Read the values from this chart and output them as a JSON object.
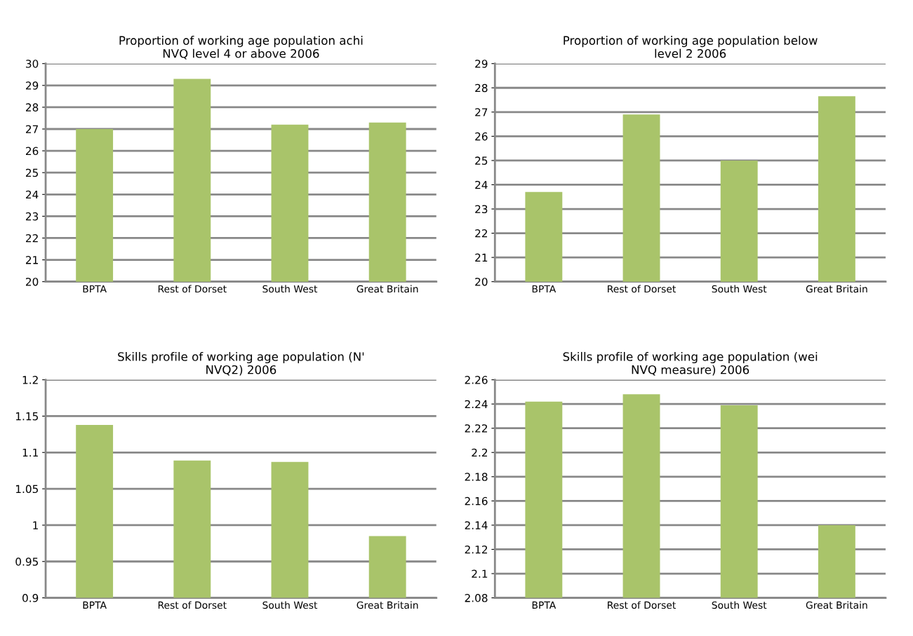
{
  "chart_data": [
    {
      "type": "bar",
      "title": "Proportion of working age population achi\nNVQ level 4 or above 2006",
      "categories": [
        "BPTA",
        "Rest of Dorset",
        "South West",
        "Great Britain"
      ],
      "values": [
        27.0,
        29.3,
        27.2,
        27.3
      ],
      "color": "#a9c46a",
      "ylim": [
        20,
        30
      ],
      "yticks": [
        20,
        21,
        22,
        23,
        24,
        25,
        26,
        27,
        28,
        29,
        30
      ],
      "grid": "y",
      "legend": false
    },
    {
      "type": "bar",
      "title": "Proportion of working age population below\nlevel 2 2006",
      "categories": [
        "BPTA",
        "Rest of Dorset",
        "South West",
        "Great Britain"
      ],
      "values": [
        23.7,
        26.9,
        25.0,
        27.65
      ],
      "color": "#a9c46a",
      "ylim": [
        20,
        29
      ],
      "yticks": [
        20,
        21,
        22,
        23,
        24,
        25,
        26,
        27,
        28,
        29
      ],
      "grid": "y",
      "legend": false
    },
    {
      "type": "bar",
      "title": "Skills profile of working age population (N'\nNVQ2) 2006",
      "categories": [
        "BPTA",
        "Rest of Dorset",
        "South West",
        "Great Britain"
      ],
      "values": [
        1.138,
        1.089,
        1.087,
        0.985
      ],
      "color": "#a9c46a",
      "ylim": [
        0.9,
        1.2
      ],
      "yticks": [
        0.9,
        0.95,
        1,
        1.05,
        1.1,
        1.15,
        1.2
      ],
      "grid": "y",
      "legend": false
    },
    {
      "type": "bar",
      "title": "Skills profile of working age population (wei\nNVQ measure) 2006",
      "categories": [
        "BPTA",
        "Rest of Dorset",
        "South West",
        "Great Britain"
      ],
      "values": [
        2.242,
        2.248,
        2.239,
        2.14
      ],
      "color": "#a9c46a",
      "ylim": [
        2.08,
        2.26
      ],
      "yticks": [
        2.08,
        2.1,
        2.12,
        2.14,
        2.16,
        2.18,
        2.2,
        2.22,
        2.24,
        2.26
      ],
      "grid": "y",
      "legend": false
    }
  ]
}
